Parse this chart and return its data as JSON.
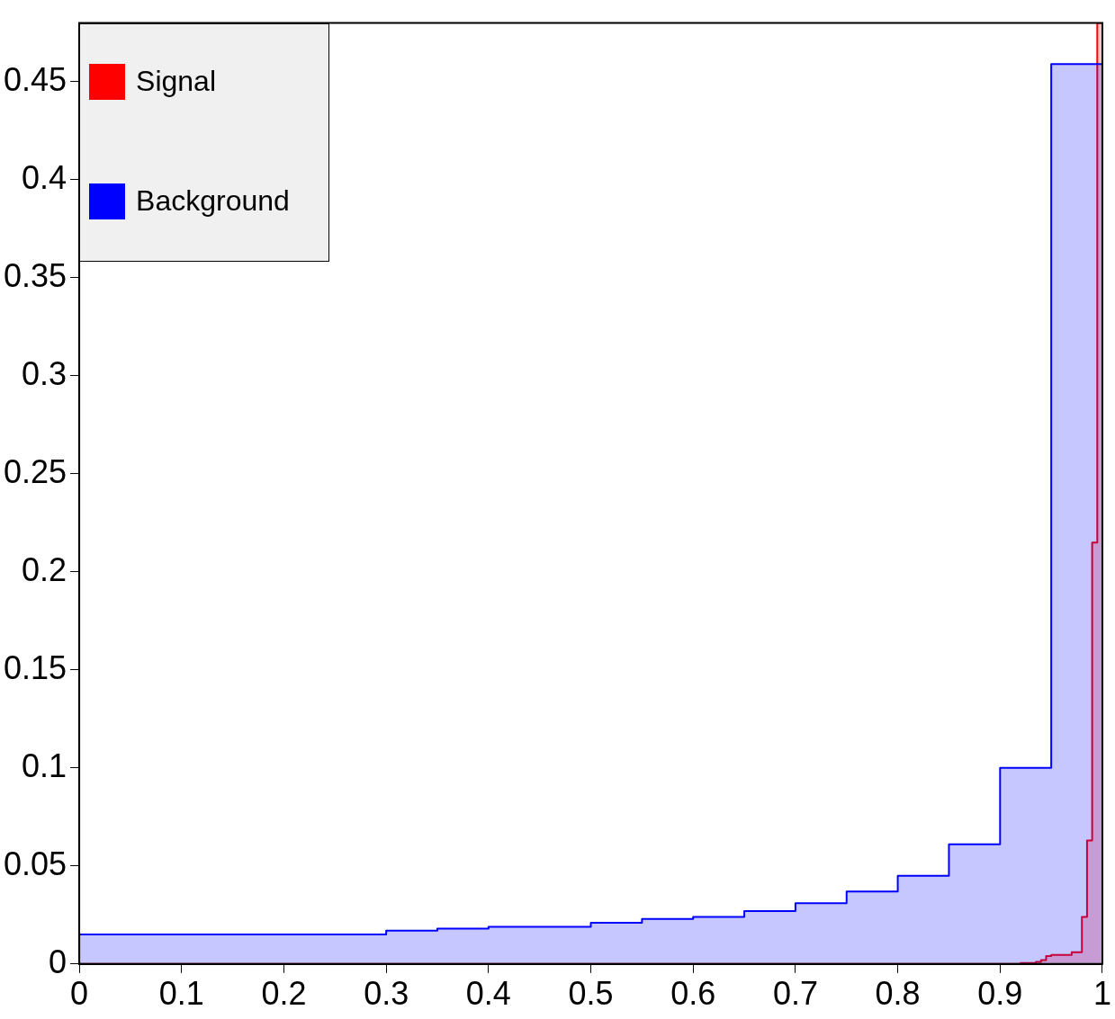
{
  "chart_data": {
    "type": "histogram",
    "xlim": [
      0,
      1
    ],
    "ylim": [
      0,
      0.48
    ],
    "xticks": [
      0,
      0.1,
      0.2,
      0.3,
      0.4,
      0.5,
      0.6,
      0.7,
      0.8,
      0.9,
      1
    ],
    "yticks": [
      0,
      0.05,
      0.1,
      0.15,
      0.2,
      0.25,
      0.3,
      0.35,
      0.4,
      0.45
    ],
    "grid": false,
    "legend": "top left",
    "bins": [
      0,
      0.05,
      0.1,
      0.15,
      0.2,
      0.25,
      0.3,
      0.35,
      0.4,
      0.45,
      0.5,
      0.55,
      0.6,
      0.65,
      0.7,
      0.75,
      0.8,
      0.85,
      0.9,
      0.905,
      0.91,
      0.915,
      0.92,
      0.925,
      0.93,
      0.935,
      0.94,
      0.945,
      0.95,
      0.955,
      0.96,
      0.965,
      0.97,
      0.975,
      0.98,
      0.985,
      0.99,
      0.995,
      1
    ],
    "series": [
      {
        "name": "Background",
        "color": "#0000ff",
        "values": [
          0.015,
          0.015,
          0.015,
          0.015,
          0.015,
          0.015,
          0.017,
          0.018,
          0.019,
          0.019,
          0.021,
          0.023,
          0.024,
          0.027,
          0.031,
          0.037,
          0.045,
          0.061,
          0.1,
          0.1,
          0.1,
          0.1,
          0.1,
          0.1,
          0.1,
          0.1,
          0.1,
          0.1,
          0.459,
          0.459,
          0.459,
          0.459,
          0.459,
          0.459,
          0.459,
          0.459,
          0.459,
          0.459
        ]
      },
      {
        "name": "Signal",
        "color": "#ff0000",
        "values": [
          0,
          0,
          0,
          0,
          0,
          0,
          0,
          0,
          0,
          0,
          0,
          0,
          0,
          0,
          0,
          0,
          0,
          0,
          0,
          0,
          0,
          0,
          0.0005,
          0.0005,
          0.0005,
          0.001,
          0.002,
          0.004,
          0.0046,
          0.0046,
          0.0046,
          0.0046,
          0.006,
          0.006,
          0.024,
          0.063,
          0.215,
          0.48
        ]
      }
    ]
  }
}
